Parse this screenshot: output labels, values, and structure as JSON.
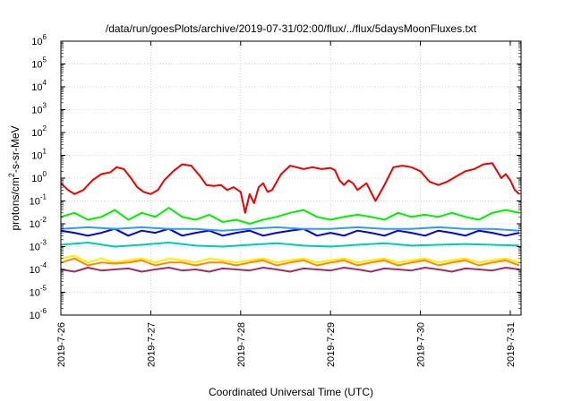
{
  "chart_data": {
    "type": "line",
    "title": "/data/run/goesPlots/archive/2019-07-31/02:00/flux/../flux/5daysMoonFluxes.txt",
    "xlabel": "Coordinated Universal Time (UTC)",
    "ylabel_parts": [
      "protons/cm",
      "2",
      "-s-sr-MeV"
    ],
    "y_scale": "log",
    "ylim": [
      1e-06,
      1000000.0
    ],
    "xlim_days": [
      0,
      5.12
    ],
    "grid": true,
    "y_ticks": [
      {
        "value": -6,
        "base": "10",
        "exp": "-6"
      },
      {
        "value": -5,
        "base": "10",
        "exp": "-5"
      },
      {
        "value": -4,
        "base": "10",
        "exp": "-4"
      },
      {
        "value": -3,
        "base": "10",
        "exp": "-3"
      },
      {
        "value": -2,
        "base": "10",
        "exp": "-2"
      },
      {
        "value": -1,
        "base": "10",
        "exp": "-1"
      },
      {
        "value": 0,
        "base": "10",
        "exp": "0"
      },
      {
        "value": 1,
        "base": "10",
        "exp": "1"
      },
      {
        "value": 2,
        "base": "10",
        "exp": "2"
      },
      {
        "value": 3,
        "base": "10",
        "exp": "3"
      },
      {
        "value": 4,
        "base": "10",
        "exp": "4"
      },
      {
        "value": 5,
        "base": "10",
        "exp": "5"
      },
      {
        "value": 6,
        "base": "10",
        "exp": "6"
      }
    ],
    "x_ticks": [
      {
        "day": 0,
        "label": "2019-7-26"
      },
      {
        "day": 1,
        "label": "2019-7-27"
      },
      {
        "day": 2,
        "label": "2019-7-28"
      },
      {
        "day": 3,
        "label": "2019-7-29"
      },
      {
        "day": 4,
        "label": "2019-7-30"
      },
      {
        "day": 5,
        "label": "2019-7-31"
      }
    ],
    "series": [
      {
        "color": "#ee0000",
        "x": [
          0,
          0.08,
          0.15,
          0.25,
          0.35,
          0.45,
          0.55,
          0.62,
          0.7,
          0.78,
          0.85,
          0.92,
          1.0,
          1.08,
          1.15,
          1.25,
          1.35,
          1.45,
          1.55,
          1.62,
          1.7,
          1.78,
          1.85,
          1.92,
          2.0,
          2.05,
          2.1,
          2.15,
          2.2,
          2.25,
          2.3,
          2.35,
          2.45,
          2.55,
          2.62,
          2.7,
          2.8,
          2.9,
          3.0,
          3.05,
          3.1,
          3.15,
          3.2,
          3.25,
          3.3,
          3.4,
          3.5,
          3.6,
          3.7,
          3.8,
          3.9,
          4.0,
          4.1,
          4.2,
          4.3,
          4.4,
          4.5,
          4.6,
          4.7,
          4.8,
          4.9,
          4.95,
          5.0,
          5.05,
          5.1
        ],
        "y": [
          0.6,
          0.3,
          0.2,
          0.3,
          0.8,
          1.5,
          1.8,
          3,
          2.5,
          1,
          0.4,
          0.25,
          0.2,
          0.3,
          0.8,
          2,
          4,
          3.5,
          1.2,
          0.5,
          0.45,
          0.5,
          0.3,
          0.4,
          0.25,
          0.03,
          0.2,
          0.08,
          0.4,
          0.6,
          0.25,
          0.3,
          1.5,
          3.5,
          3,
          2.5,
          3,
          2.5,
          2.8,
          2.2,
          0.8,
          0.5,
          0.8,
          0.6,
          0.3,
          0.6,
          0.1,
          0.5,
          3,
          3.5,
          3,
          2,
          0.7,
          0.5,
          0.7,
          1.2,
          2,
          2.5,
          4,
          4.5,
          1,
          1.5,
          0.8,
          0.3,
          0.2
        ]
      },
      {
        "color": "#00ee00",
        "x": [
          0,
          0.15,
          0.3,
          0.45,
          0.6,
          0.75,
          0.9,
          1.05,
          1.2,
          1.35,
          1.5,
          1.65,
          1.8,
          1.95,
          2.1,
          2.25,
          2.4,
          2.55,
          2.7,
          2.85,
          3.0,
          3.15,
          3.3,
          3.45,
          3.6,
          3.75,
          3.9,
          4.05,
          4.2,
          4.35,
          4.5,
          4.65,
          4.8,
          4.95,
          5.1
        ],
        "y": [
          0.02,
          0.03,
          0.015,
          0.02,
          0.04,
          0.015,
          0.03,
          0.02,
          0.05,
          0.02,
          0.015,
          0.025,
          0.012,
          0.015,
          0.01,
          0.015,
          0.02,
          0.03,
          0.04,
          0.02,
          0.015,
          0.02,
          0.025,
          0.02,
          0.015,
          0.03,
          0.02,
          0.025,
          0.02,
          0.03,
          0.02,
          0.015,
          0.03,
          0.04,
          0.03
        ]
      },
      {
        "color": "#0000dd",
        "x": [
          0,
          0.15,
          0.3,
          0.45,
          0.6,
          0.75,
          0.9,
          1.05,
          1.2,
          1.35,
          1.5,
          1.65,
          1.8,
          1.95,
          2.1,
          2.25,
          2.4,
          2.55,
          2.7,
          2.85,
          3.0,
          3.15,
          3.3,
          3.45,
          3.6,
          3.75,
          3.9,
          4.05,
          4.2,
          4.35,
          4.5,
          4.65,
          4.8,
          4.95,
          5.1
        ],
        "y": [
          0.005,
          0.004,
          0.003,
          0.004,
          0.006,
          0.003,
          0.005,
          0.004,
          0.006,
          0.003,
          0.004,
          0.005,
          0.003,
          0.004,
          0.005,
          0.003,
          0.004,
          0.005,
          0.006,
          0.003,
          0.004,
          0.003,
          0.005,
          0.004,
          0.003,
          0.005,
          0.004,
          0.003,
          0.005,
          0.004,
          0.003,
          0.005,
          0.004,
          0.003,
          0.004
        ]
      },
      {
        "color": "#3399ff",
        "x": [
          0,
          0.3,
          0.6,
          0.9,
          1.2,
          1.5,
          1.8,
          2.1,
          2.4,
          2.7,
          3.0,
          3.3,
          3.6,
          3.9,
          4.2,
          4.5,
          4.8,
          5.1
        ],
        "y": [
          0.006,
          0.007,
          0.006,
          0.007,
          0.006,
          0.006,
          0.005,
          0.006,
          0.007,
          0.006,
          0.006,
          0.007,
          0.006,
          0.006,
          0.007,
          0.006,
          0.006,
          0.005
        ]
      },
      {
        "color": "#00ccaa",
        "x": [
          0,
          0.3,
          0.6,
          0.9,
          1.2,
          1.5,
          1.8,
          2.1,
          2.4,
          2.7,
          3.0,
          3.3,
          3.6,
          3.9,
          4.2,
          4.5,
          4.8,
          5.1
        ],
        "y": [
          0.0012,
          0.0015,
          0.001,
          0.0012,
          0.0015,
          0.0011,
          0.001,
          0.0012,
          0.0014,
          0.0011,
          0.001,
          0.0012,
          0.0014,
          0.0011,
          0.0012,
          0.0013,
          0.0012,
          0.0011
        ]
      },
      {
        "color": "#ffee00",
        "x": [
          0,
          0.15,
          0.3,
          0.45,
          0.6,
          0.75,
          0.9,
          1.05,
          1.2,
          1.35,
          1.5,
          1.65,
          1.8,
          1.95,
          2.1,
          2.25,
          2.4,
          2.55,
          2.7,
          2.85,
          3.0,
          3.15,
          3.3,
          3.45,
          3.6,
          3.75,
          3.9,
          4.05,
          4.2,
          4.35,
          4.5,
          4.65,
          4.8,
          4.95,
          5.1
        ],
        "y": [
          0.0003,
          0.0004,
          0.0002,
          0.0003,
          0.0002,
          0.00025,
          0.0003,
          0.0002,
          0.0003,
          0.00025,
          0.0002,
          0.0003,
          0.00025,
          0.0002,
          0.00025,
          0.0003,
          0.0002,
          0.00025,
          0.0003,
          0.0002,
          0.00025,
          0.0003,
          0.0002,
          0.00025,
          0.0003,
          0.0002,
          0.00025,
          0.0003,
          0.0002,
          0.00025,
          0.0003,
          0.0002,
          0.00025,
          0.0003,
          0.0002
        ]
      },
      {
        "color": "#ff8800",
        "x": [
          0,
          0.15,
          0.3,
          0.45,
          0.6,
          0.75,
          0.9,
          1.05,
          1.2,
          1.35,
          1.5,
          1.65,
          1.8,
          1.95,
          2.1,
          2.25,
          2.4,
          2.55,
          2.7,
          2.85,
          3.0,
          3.15,
          3.3,
          3.45,
          3.6,
          3.75,
          3.9,
          4.05,
          4.2,
          4.35,
          4.5,
          4.65,
          4.8,
          4.95,
          5.1
        ],
        "y": [
          0.0002,
          0.0003,
          0.00015,
          0.0002,
          0.00018,
          0.0002,
          0.00025,
          0.00015,
          0.0002,
          0.0002,
          0.00015,
          0.0002,
          0.0002,
          0.00015,
          0.0002,
          0.00025,
          0.00015,
          0.0002,
          0.00025,
          0.00015,
          0.0002,
          0.00025,
          0.00015,
          0.0002,
          0.00025,
          0.00015,
          0.0002,
          0.00025,
          0.00015,
          0.0002,
          0.00025,
          0.00015,
          0.0002,
          0.00025,
          0.00015
        ]
      },
      {
        "color": "#993366",
        "x": [
          0,
          0.15,
          0.3,
          0.45,
          0.6,
          0.75,
          0.9,
          1.05,
          1.2,
          1.35,
          1.5,
          1.65,
          1.8,
          1.95,
          2.1,
          2.25,
          2.4,
          2.55,
          2.7,
          2.85,
          3.0,
          3.15,
          3.3,
          3.45,
          3.6,
          3.75,
          3.9,
          4.05,
          4.2,
          4.35,
          4.5,
          4.65,
          4.8,
          4.95,
          5.1
        ],
        "y": [
          0.0001,
          8e-05,
          0.00012,
          9e-05,
          0.0001,
          0.00011,
          8e-05,
          0.0001,
          0.00012,
          9e-05,
          0.0001,
          8e-05,
          0.00011,
          0.0001,
          9e-05,
          0.00012,
          0.0001,
          8e-05,
          0.00011,
          0.0001,
          9e-05,
          0.00012,
          0.0001,
          8e-05,
          0.00011,
          0.0001,
          9e-05,
          0.00012,
          0.0001,
          8e-05,
          0.00011,
          0.0001,
          9e-05,
          0.00012,
          0.0001
        ]
      }
    ]
  }
}
